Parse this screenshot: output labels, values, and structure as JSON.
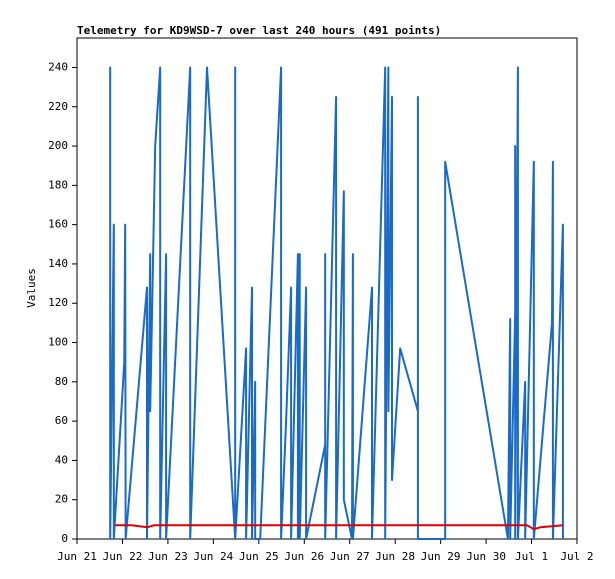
{
  "chart_data": {
    "type": "line",
    "title": "Telemetry for KD9WSD-7 over last 240 hours (491 points)",
    "y_label": "Values",
    "xlim": [
      0,
      11
    ],
    "xticks": [
      {
        "value": 0,
        "label": "Jun 21"
      },
      {
        "value": 1,
        "label": "Jun 22"
      },
      {
        "value": 2,
        "label": "Jun 23"
      },
      {
        "value": 3,
        "label": "Jun 24"
      },
      {
        "value": 4,
        "label": "Jun 25"
      },
      {
        "value": 5,
        "label": "Jun 26"
      },
      {
        "value": 6,
        "label": "Jun 27"
      },
      {
        "value": 7,
        "label": "Jun 28"
      },
      {
        "value": 8,
        "label": "Jun 29"
      },
      {
        "value": 9,
        "label": "Jun 30"
      },
      {
        "value": 10,
        "label": "Jul 1"
      },
      {
        "value": 11,
        "label": "Jul 2"
      }
    ],
    "ylim": [
      0,
      255
    ],
    "yticks": [
      0,
      20,
      40,
      60,
      80,
      100,
      120,
      140,
      160,
      180,
      200,
      220,
      240
    ],
    "series": [
      {
        "color": "#1a6ac8",
        "x": [
          0.73,
          0.73,
          0.73,
          0.81,
          0.81,
          1.04,
          1.06,
          1.07,
          1.54,
          1.54,
          1.61,
          1.61,
          1.72,
          1.83,
          1.83,
          1.96,
          1.96,
          2.49,
          2.49,
          2.86,
          3.48,
          3.48,
          3.48,
          3.72,
          3.72,
          3.85,
          3.85,
          3.92,
          3.92,
          4.03,
          4.49,
          4.49,
          4.6,
          4.71,
          4.71,
          4.86,
          4.86,
          4.9,
          4.9,
          5.04,
          5.04,
          5.46,
          5.46,
          5.46,
          5.7,
          5.7,
          5.87,
          5.87,
          6.05,
          6.07,
          6.07,
          6.49,
          6.49,
          6.78,
          6.78,
          6.85,
          6.85,
          6.93,
          6.93,
          7.11,
          7.5,
          7.5,
          7.5,
          8.1,
          8.1,
          9.48,
          9.53,
          9.53,
          9.64,
          9.64,
          9.64,
          9.7,
          9.7,
          9.86,
          9.86,
          10.05,
          10.05,
          10.45,
          10.47,
          10.47,
          10.69,
          10.69
        ],
        "values": [
          0,
          240,
          0,
          160,
          0,
          90,
          160,
          0,
          128,
          0,
          145,
          65,
          200,
          240,
          0,
          145,
          0,
          240,
          0,
          240,
          0,
          240,
          0,
          97,
          0,
          128,
          0,
          80,
          0,
          0,
          240,
          0,
          60,
          128,
          0,
          145,
          0,
          145,
          0,
          128,
          0,
          48,
          145,
          0,
          225,
          0,
          177,
          20,
          0,
          145,
          0,
          128,
          0,
          240,
          0,
          240,
          65,
          225,
          30,
          97,
          65,
          225,
          0,
          0,
          192,
          0,
          112,
          0,
          115,
          200,
          0,
          240,
          0,
          80,
          0,
          192,
          0,
          110,
          192,
          0,
          160,
          0
        ]
      },
      {
        "color": "#e00000",
        "x": [
          0.84,
          1.2,
          1.55,
          1.7,
          9.9,
          10.05,
          10.2,
          10.69
        ],
        "values": [
          7,
          7,
          6,
          7,
          7,
          5,
          6,
          7
        ]
      }
    ]
  }
}
